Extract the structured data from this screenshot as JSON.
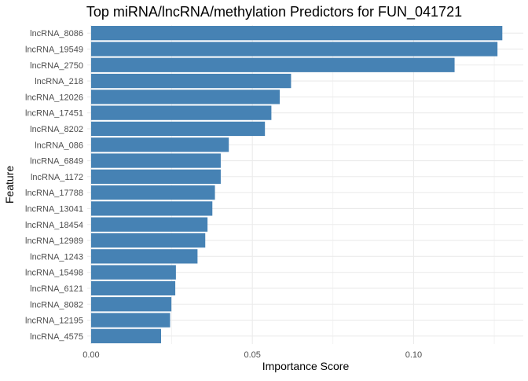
{
  "chart_data": {
    "type": "bar",
    "orientation": "horizontal",
    "title": "Top miRNA/lncRNA/methylation Predictors for FUN_041721",
    "xlabel": "Importance Score",
    "ylabel": "Feature",
    "xlim": [
      -0.0012,
      0.134
    ],
    "xticks": [
      0.0,
      0.05,
      0.1
    ],
    "xtick_labels": [
      "0.00",
      "0.05",
      "0.10"
    ],
    "grid": true,
    "bar_color": "#4682b4",
    "categories": [
      "lncRNA_8086",
      "lncRNA_19549",
      "lncRNA_2750",
      "lncRNA_218",
      "lncRNA_12026",
      "lncRNA_17451",
      "lncRNA_8202",
      "lncRNA_086",
      "lncRNA_6849",
      "lncRNA_1172",
      "lncRNA_17788",
      "lncRNA_13041",
      "lncRNA_18454",
      "lncRNA_12989",
      "lncRNA_1243",
      "lncRNA_15498",
      "lncRNA_6121",
      "lncRNA_8082",
      "lncRNA_12195",
      "lncRNA_4575"
    ],
    "values": [
      0.1275,
      0.126,
      0.1127,
      0.062,
      0.0585,
      0.0559,
      0.0539,
      0.0427,
      0.0402,
      0.0402,
      0.0384,
      0.0376,
      0.0361,
      0.0354,
      0.033,
      0.0263,
      0.0261,
      0.0249,
      0.0245,
      0.0217
    ]
  }
}
